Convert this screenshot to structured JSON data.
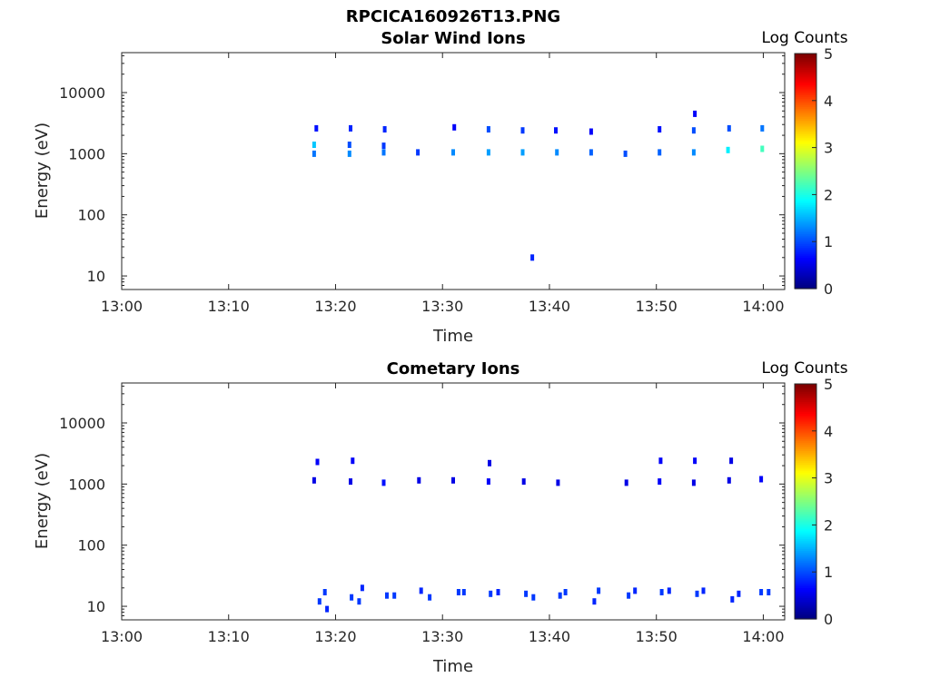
{
  "figure": {
    "title": "RPCICA160926T13.PNG"
  },
  "colorbar": {
    "label": "Log Counts",
    "ticks": [
      "0",
      "1",
      "2",
      "3",
      "4",
      "5"
    ],
    "range": [
      0,
      5
    ],
    "colormap": "jet"
  },
  "chart_data": [
    {
      "type": "heatmap",
      "title": "Solar Wind Ions",
      "xlabel": "Time",
      "ylabel": "Energy (eV)",
      "x_ticks": [
        "13:00",
        "13:10",
        "13:20",
        "13:30",
        "13:40",
        "13:50",
        "14:00"
      ],
      "xlim_minutes": [
        0,
        62
      ],
      "y_ticks": [
        "10",
        "100",
        "1000",
        "10000"
      ],
      "ylim": [
        6,
        45000
      ],
      "y_scale": "log",
      "clim": [
        0,
        5
      ],
      "cells": [
        {
          "t": 18.0,
          "e": 1000,
          "v": 1.2
        },
        {
          "t": 18.0,
          "e": 1400,
          "v": 1.6
        },
        {
          "t": 18.2,
          "e": 2600,
          "v": 0.7
        },
        {
          "t": 21.3,
          "e": 1000,
          "v": 1.3
        },
        {
          "t": 21.3,
          "e": 1400,
          "v": 1.0
        },
        {
          "t": 21.4,
          "e": 2600,
          "v": 0.8
        },
        {
          "t": 24.5,
          "e": 1050,
          "v": 1.2
        },
        {
          "t": 24.5,
          "e": 1350,
          "v": 0.9
        },
        {
          "t": 24.6,
          "e": 2500,
          "v": 0.8
        },
        {
          "t": 27.7,
          "e": 1050,
          "v": 0.9
        },
        {
          "t": 31.0,
          "e": 1050,
          "v": 1.3
        },
        {
          "t": 31.1,
          "e": 2700,
          "v": 0.6
        },
        {
          "t": 34.3,
          "e": 1050,
          "v": 1.4
        },
        {
          "t": 34.3,
          "e": 2500,
          "v": 1.0
        },
        {
          "t": 37.5,
          "e": 1050,
          "v": 1.4
        },
        {
          "t": 37.5,
          "e": 2400,
          "v": 0.9
        },
        {
          "t": 38.4,
          "e": 20,
          "v": 0.8
        },
        {
          "t": 40.7,
          "e": 1050,
          "v": 1.3
        },
        {
          "t": 40.6,
          "e": 2400,
          "v": 0.7
        },
        {
          "t": 43.9,
          "e": 1050,
          "v": 1.1
        },
        {
          "t": 43.9,
          "e": 2300,
          "v": 0.6
        },
        {
          "t": 47.1,
          "e": 1000,
          "v": 1.0
        },
        {
          "t": 50.3,
          "e": 1050,
          "v": 1.1
        },
        {
          "t": 50.3,
          "e": 2500,
          "v": 0.7
        },
        {
          "t": 53.5,
          "e": 1050,
          "v": 1.3
        },
        {
          "t": 53.5,
          "e": 2400,
          "v": 1.0
        },
        {
          "t": 53.6,
          "e": 4500,
          "v": 0.6
        },
        {
          "t": 56.7,
          "e": 1150,
          "v": 1.8
        },
        {
          "t": 56.8,
          "e": 2600,
          "v": 1.0
        },
        {
          "t": 59.9,
          "e": 1200,
          "v": 2.2
        },
        {
          "t": 59.9,
          "e": 2600,
          "v": 1.2
        }
      ]
    },
    {
      "type": "heatmap",
      "title": "Cometary Ions",
      "xlabel": "Time",
      "ylabel": "Energy (eV)",
      "x_ticks": [
        "13:00",
        "13:10",
        "13:20",
        "13:30",
        "13:40",
        "13:50",
        "14:00"
      ],
      "xlim_minutes": [
        0,
        62
      ],
      "y_ticks": [
        "10",
        "100",
        "1000",
        "10000"
      ],
      "ylim": [
        6,
        45000
      ],
      "y_scale": "log",
      "clim": [
        0,
        5
      ],
      "cells": [
        {
          "t": 18.0,
          "e": 1150,
          "v": 0.5
        },
        {
          "t": 18.3,
          "e": 2300,
          "v": 0.6
        },
        {
          "t": 21.4,
          "e": 1100,
          "v": 0.5
        },
        {
          "t": 21.6,
          "e": 2400,
          "v": 0.6
        },
        {
          "t": 24.5,
          "e": 1050,
          "v": 0.7
        },
        {
          "t": 27.8,
          "e": 1150,
          "v": 0.5
        },
        {
          "t": 31.0,
          "e": 1150,
          "v": 0.5
        },
        {
          "t": 34.3,
          "e": 1100,
          "v": 0.6
        },
        {
          "t": 34.4,
          "e": 2200,
          "v": 0.5
        },
        {
          "t": 37.6,
          "e": 1100,
          "v": 0.5
        },
        {
          "t": 40.8,
          "e": 1050,
          "v": 0.5
        },
        {
          "t": 47.2,
          "e": 1050,
          "v": 0.5
        },
        {
          "t": 50.3,
          "e": 1100,
          "v": 0.6
        },
        {
          "t": 50.4,
          "e": 2400,
          "v": 0.6
        },
        {
          "t": 53.5,
          "e": 1050,
          "v": 0.5
        },
        {
          "t": 53.6,
          "e": 2400,
          "v": 0.6
        },
        {
          "t": 56.8,
          "e": 1150,
          "v": 0.5
        },
        {
          "t": 57.0,
          "e": 2400,
          "v": 0.5
        },
        {
          "t": 59.8,
          "e": 1200,
          "v": 0.6
        },
        {
          "t": 18.5,
          "e": 12,
          "v": 0.9
        },
        {
          "t": 19.0,
          "e": 17,
          "v": 0.9
        },
        {
          "t": 19.2,
          "e": 9,
          "v": 0.8
        },
        {
          "t": 21.5,
          "e": 14,
          "v": 0.9
        },
        {
          "t": 22.2,
          "e": 12,
          "v": 0.9
        },
        {
          "t": 22.5,
          "e": 20,
          "v": 0.8
        },
        {
          "t": 24.8,
          "e": 15,
          "v": 0.9
        },
        {
          "t": 25.5,
          "e": 15,
          "v": 0.9
        },
        {
          "t": 28.0,
          "e": 18,
          "v": 0.8
        },
        {
          "t": 28.8,
          "e": 14,
          "v": 0.9
        },
        {
          "t": 31.5,
          "e": 17,
          "v": 0.9
        },
        {
          "t": 32.0,
          "e": 17,
          "v": 0.9
        },
        {
          "t": 34.5,
          "e": 16,
          "v": 0.9
        },
        {
          "t": 35.2,
          "e": 17,
          "v": 0.8
        },
        {
          "t": 37.8,
          "e": 16,
          "v": 0.9
        },
        {
          "t": 38.5,
          "e": 14,
          "v": 0.9
        },
        {
          "t": 41.0,
          "e": 15,
          "v": 0.9
        },
        {
          "t": 41.5,
          "e": 17,
          "v": 0.9
        },
        {
          "t": 44.2,
          "e": 12,
          "v": 0.8
        },
        {
          "t": 44.6,
          "e": 18,
          "v": 0.9
        },
        {
          "t": 47.4,
          "e": 15,
          "v": 0.9
        },
        {
          "t": 48.0,
          "e": 18,
          "v": 0.8
        },
        {
          "t": 50.5,
          "e": 17,
          "v": 0.9
        },
        {
          "t": 51.2,
          "e": 18,
          "v": 0.8
        },
        {
          "t": 53.8,
          "e": 16,
          "v": 0.9
        },
        {
          "t": 54.4,
          "e": 18,
          "v": 0.8
        },
        {
          "t": 57.1,
          "e": 13,
          "v": 0.8
        },
        {
          "t": 57.7,
          "e": 16,
          "v": 0.8
        },
        {
          "t": 59.8,
          "e": 17,
          "v": 0.9
        },
        {
          "t": 60.5,
          "e": 17,
          "v": 0.9
        }
      ]
    }
  ]
}
